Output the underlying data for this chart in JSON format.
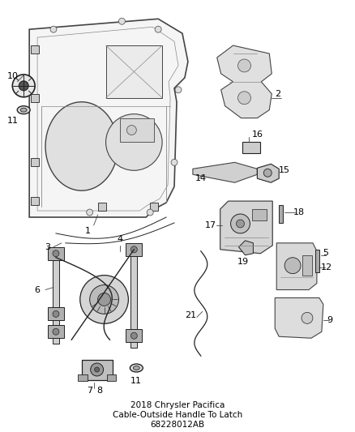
{
  "title": "2018 Chrysler Pacifica",
  "subtitle": "Cable-Outside Handle To Latch",
  "part_number": "68228012AB",
  "bg_color": "#ffffff",
  "line_color": "#444444",
  "dark_color": "#222222",
  "gray_color": "#888888",
  "light_gray": "#bbbbbb",
  "text_color": "#000000",
  "label_fontsize": 7.5,
  "title_fontsize": 7,
  "figsize": [
    4.38,
    5.33
  ],
  "dpi": 100
}
